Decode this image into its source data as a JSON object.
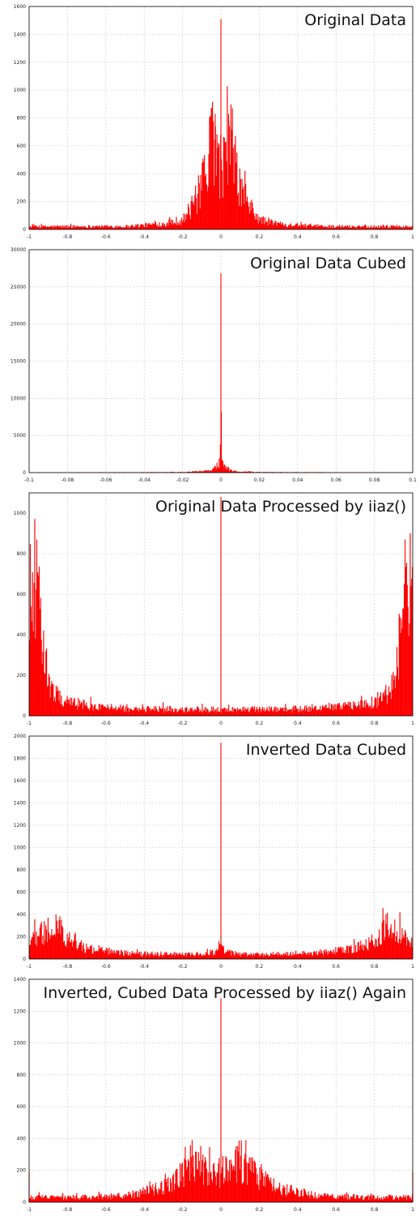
{
  "chart_data": [
    {
      "type": "bar",
      "title": "Original Data",
      "xlabel": "",
      "ylabel": "",
      "xlim": [
        -1,
        1
      ],
      "ylim": [
        0,
        1600
      ],
      "x_ticks": [
        "-1",
        "-0.8",
        "-0.6",
        "-0.4",
        "-0.2",
        "0",
        "0.2",
        "0.4",
        "0.6",
        "0.8",
        "1"
      ],
      "y_ticks": [
        "0",
        "200",
        "400",
        "600",
        "800",
        "1000",
        "1200",
        "1400",
        "1600"
      ],
      "grid": true,
      "color": "#ff0000",
      "profile": {
        "x": [
          -1,
          -0.5,
          -0.3,
          -0.2,
          -0.15,
          -0.1,
          -0.06,
          -0.05,
          -0.04,
          -0.02,
          0,
          0.02,
          0.04,
          0.05,
          0.06,
          0.1,
          0.15,
          0.2,
          0.3,
          0.5,
          1
        ],
        "y": [
          20,
          22,
          40,
          70,
          160,
          300,
          520,
          740,
          520,
          480,
          470,
          480,
          520,
          740,
          520,
          300,
          160,
          70,
          40,
          22,
          20
        ]
      },
      "noise": 0.55,
      "spikes": [
        {
          "x": -0.05,
          "y": 870
        },
        {
          "x": -0.03,
          "y": 830
        },
        {
          "x": 0,
          "y": 1510
        },
        {
          "x": 0.04,
          "y": 830
        },
        {
          "x": 0.06,
          "y": 870
        }
      ]
    },
    {
      "type": "bar",
      "title": "Original Data Cubed",
      "xlabel": "",
      "ylabel": "",
      "xlim": [
        -0.1,
        0.1
      ],
      "ylim": [
        0,
        30000
      ],
      "x_ticks": [
        "-0.1",
        "-0.08",
        "-0.06",
        "-0.04",
        "-0.02",
        "0",
        "0.02",
        "0.04",
        "0.06",
        "0.08",
        "0.1"
      ],
      "y_ticks": [
        "0",
        "5000",
        "10000",
        "15000",
        "20000",
        "25000",
        "30000"
      ],
      "grid": true,
      "color": "#ff0000",
      "profile": {
        "x": [
          -0.1,
          -0.02,
          -0.005,
          -0.002,
          0,
          0.002,
          0.005,
          0.02,
          0.1
        ],
        "y": [
          20,
          60,
          250,
          900,
          1500,
          900,
          250,
          60,
          20
        ]
      },
      "noise": 0.6,
      "spikes": [
        {
          "x": -0.0003,
          "y": 3800
        },
        {
          "x": 0,
          "y": 26800
        },
        {
          "x": 0.0002,
          "y": 8200
        }
      ]
    },
    {
      "type": "bar",
      "title": "Original Data Processed by iiaz()",
      "xlabel": "",
      "ylabel": "",
      "xlim": [
        -1,
        1
      ],
      "ylim": [
        0,
        1100
      ],
      "x_ticks": [
        "-1",
        "-0.8",
        "-0.6",
        "-0.4",
        "-0.2",
        "0",
        "0.2",
        "0.4",
        "0.6",
        "0.8",
        "1"
      ],
      "y_ticks": [
        "0",
        "200",
        "400",
        "600",
        "800",
        "1000"
      ],
      "grid": true,
      "color": "#ff0000",
      "profile": {
        "x": [
          -1,
          -0.98,
          -0.96,
          -0.94,
          -0.92,
          -0.9,
          -0.85,
          -0.8,
          -0.7,
          -0.5,
          0,
          0.5,
          0.7,
          0.8,
          0.85,
          0.9,
          0.92,
          0.94,
          0.96,
          0.98,
          1
        ],
        "y": [
          560,
          640,
          720,
          450,
          250,
          150,
          95,
          70,
          50,
          35,
          30,
          35,
          50,
          70,
          95,
          150,
          250,
          450,
          720,
          640,
          560
        ]
      },
      "noise": 0.5,
      "spikes": [
        {
          "x": -0.96,
          "y": 870
        },
        {
          "x": 0,
          "y": 1080
        },
        {
          "x": 0.96,
          "y": 870
        }
      ]
    },
    {
      "type": "bar",
      "title": "Inverted Data Cubed",
      "xlabel": "",
      "ylabel": "",
      "xlim": [
        -1,
        1
      ],
      "ylim": [
        0,
        2000
      ],
      "x_ticks": [
        "-1",
        "-0.8",
        "-0.6",
        "-0.4",
        "-0.2",
        "0",
        "0.2",
        "0.4",
        "0.6",
        "0.8",
        "1"
      ],
      "y_ticks": [
        "0",
        "200",
        "400",
        "600",
        "800",
        "1000",
        "1200",
        "1400",
        "1600",
        "1800",
        "2000"
      ],
      "grid": true,
      "color": "#ff0000",
      "profile": {
        "x": [
          -1,
          -0.95,
          -0.9,
          -0.86,
          -0.8,
          -0.7,
          -0.5,
          -0.1,
          -0.02,
          0,
          0.02,
          0.1,
          0.5,
          0.7,
          0.8,
          0.86,
          0.9,
          0.95,
          1
        ],
        "y": [
          170,
          200,
          250,
          290,
          180,
          90,
          50,
          40,
          70,
          100,
          70,
          40,
          50,
          90,
          180,
          290,
          250,
          200,
          170
        ]
      },
      "noise": 0.5,
      "spikes": [
        {
          "x": -0.86,
          "y": 400
        },
        {
          "x": -0.01,
          "y": 160
        },
        {
          "x": 0,
          "y": 1940
        },
        {
          "x": 0.86,
          "y": 400
        }
      ]
    },
    {
      "type": "bar",
      "title": "Inverted, Cubed Data Processed by iiaz() Again",
      "xlabel": "",
      "ylabel": "",
      "xlim": [
        -1,
        1
      ],
      "ylim": [
        0,
        1400
      ],
      "x_ticks": [
        "-1",
        "-0.8",
        "-0.6",
        "-0.4",
        "-0.2",
        "0",
        "0.2",
        "0.4",
        "0.6",
        "0.8",
        "1"
      ],
      "y_ticks": [
        "0",
        "200",
        "400",
        "600",
        "800",
        "1000",
        "1200",
        "1400"
      ],
      "grid": true,
      "color": "#ff0000",
      "profile": {
        "x": [
          -1,
          -0.8,
          -0.5,
          -0.3,
          -0.2,
          -0.15,
          -0.1,
          -0.05,
          0,
          0.05,
          0.1,
          0.13,
          0.2,
          0.3,
          0.5,
          0.8,
          1
        ],
        "y": [
          30,
          30,
          40,
          90,
          170,
          250,
          200,
          180,
          190,
          200,
          260,
          240,
          170,
          90,
          40,
          30,
          30
        ]
      },
      "noise": 0.55,
      "spikes": [
        {
          "x": -1,
          "y": 190
        },
        {
          "x": -0.15,
          "y": 390
        },
        {
          "x": 0,
          "y": 1280
        },
        {
          "x": 0.13,
          "y": 390
        },
        {
          "x": 1,
          "y": 190
        }
      ]
    }
  ]
}
